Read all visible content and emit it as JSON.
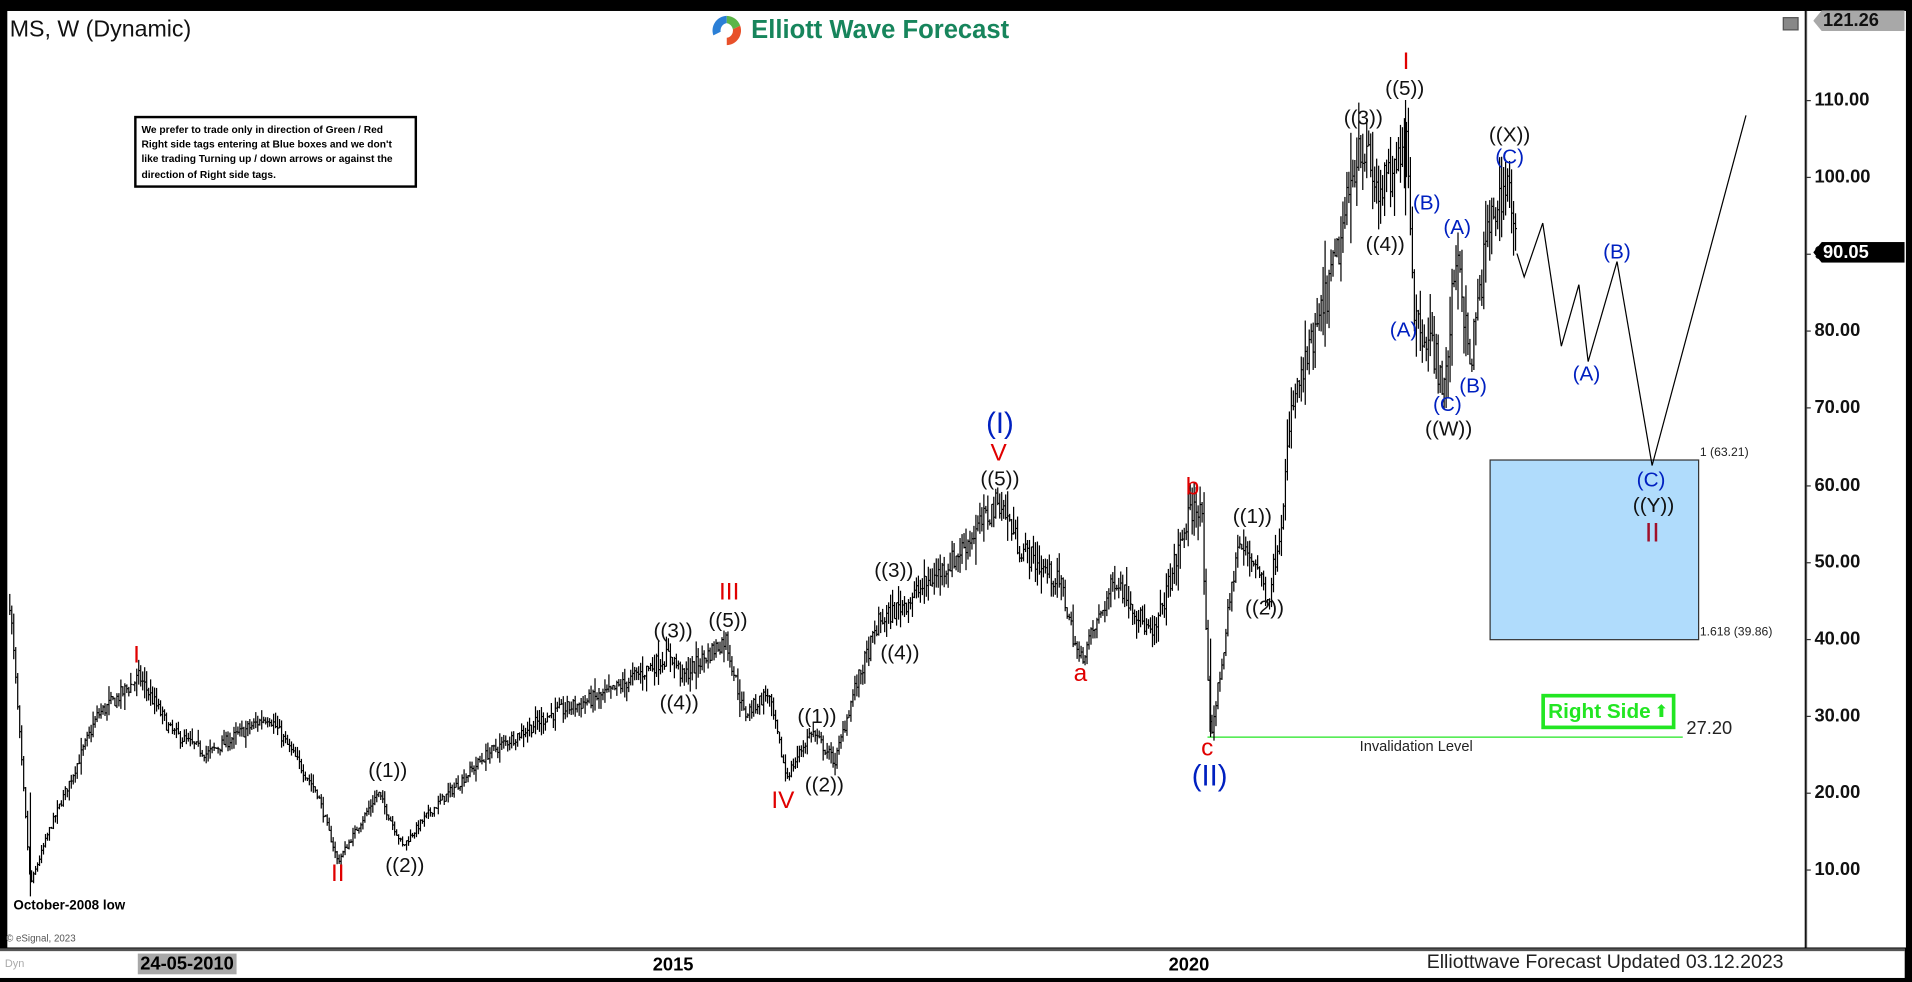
{
  "header": {
    "title": "MS, W (Dynamic)",
    "logo_text": "Elliott Wave Forecast"
  },
  "note": "We prefer to trade only in direction of Green / Red Right side tags entering at Blue boxes and we don't like trading Turning up / down arrows or against the direction of Right side tags.",
  "price_axis": {
    "ticks": [
      "110.00",
      "100.00",
      "90.00",
      "80.00",
      "70.00",
      "60.00",
      "50.00",
      "40.00",
      "30.00",
      "20.00",
      "10.00"
    ],
    "top_tag": "121.26",
    "last_price_tag": "90.05"
  },
  "time_axis": {
    "highlighted": "24-05-2010",
    "ticks": [
      "2015",
      "2020"
    ],
    "dyn": "Dyn"
  },
  "footer": "Elliottwave Forecast Updated 03.12.2023",
  "copyright": "© eSignal, 2023",
  "annotations": {
    "low_note": "October-2008 low",
    "invalidation": "Invalidation Level",
    "invalidation_price": "27.20",
    "fib_1": "1 (63.21)",
    "fib_1618": "1.618 (39.86)",
    "right_side": "Right Side"
  },
  "wave_labels": [
    "I",
    "II",
    "III",
    "IV",
    "V",
    "a",
    "b",
    "c",
    "I",
    "II",
    "(I)",
    "(II)",
    "((1))",
    "((2))",
    "((3))",
    "((4))",
    "((5))",
    "((1))",
    "((2))",
    "((3))",
    "((4))",
    "((5))",
    "((1))",
    "((2))",
    "((3))",
    "((4))",
    "((5))",
    "((W))",
    "((X))",
    "((Y))",
    "(B)",
    "(A)",
    "(A)",
    "(C)",
    "(B)",
    "(C)",
    "(B)",
    "(A)",
    "(C)"
  ],
  "colors": {
    "red": "#e00000",
    "blue": "#0020c0",
    "dark_red": "#a0102a",
    "box": "#b0dcfc",
    "green": "#22e622",
    "logo": "#17855c"
  },
  "chart_data": {
    "type": "ohlc-bar",
    "symbol": "MS",
    "interval": "W",
    "ylim": [
      0,
      121.26
    ],
    "price_path": [
      [
        2008.57,
        45
      ],
      [
        2008.77,
        8
      ],
      [
        2008.95,
        15
      ],
      [
        2009.42,
        30
      ],
      [
        2009.83,
        35
      ],
      [
        2010.13,
        28
      ],
      [
        2010.48,
        25
      ],
      [
        2011.08,
        30
      ],
      [
        2011.55,
        20
      ],
      [
        2011.75,
        11
      ],
      [
        2012.14,
        20
      ],
      [
        2012.38,
        13
      ],
      [
        2012.61,
        17
      ],
      [
        2013.2,
        25
      ],
      [
        2013.79,
        30
      ],
      [
        2014.39,
        33
      ],
      [
        2014.98,
        38
      ],
      [
        2015.09,
        35
      ],
      [
        2015.51,
        40
      ],
      [
        2015.69,
        30
      ],
      [
        2015.92,
        33
      ],
      [
        2016.1,
        22
      ],
      [
        2016.34,
        28
      ],
      [
        2016.57,
        24
      ],
      [
        2016.75,
        33
      ],
      [
        2016.99,
        42
      ],
      [
        2017.28,
        45
      ],
      [
        2017.7,
        50
      ],
      [
        2018.17,
        58
      ],
      [
        2018.35,
        52
      ],
      [
        2018.76,
        47
      ],
      [
        2018.94,
        37
      ],
      [
        2019.11,
        42
      ],
      [
        2019.29,
        48
      ],
      [
        2019.65,
        40
      ],
      [
        2020.0,
        56
      ],
      [
        2020.12,
        58
      ],
      [
        2020.18,
        35
      ],
      [
        2020.21,
        27.2
      ],
      [
        2020.3,
        35
      ],
      [
        2020.47,
        52
      ],
      [
        2020.65,
        50
      ],
      [
        2020.77,
        45
      ],
      [
        2020.89,
        55
      ],
      [
        2021.0,
        70
      ],
      [
        2021.24,
        80
      ],
      [
        2021.48,
        92
      ],
      [
        2021.65,
        105
      ],
      [
        2021.83,
        98
      ],
      [
        2022.01,
        100
      ],
      [
        2022.1,
        109
      ],
      [
        2022.19,
        82
      ],
      [
        2022.36,
        78
      ],
      [
        2022.48,
        72
      ],
      [
        2022.6,
        92
      ],
      [
        2022.72,
        75
      ],
      [
        2022.9,
        93
      ],
      [
        2023.1,
        100
      ],
      [
        2023.18,
        90.05
      ]
    ],
    "projection": [
      [
        2023.18,
        90.05
      ],
      [
        2023.25,
        87
      ],
      [
        2023.43,
        94
      ],
      [
        2023.61,
        78
      ],
      [
        2023.78,
        86
      ],
      [
        2023.87,
        76
      ],
      [
        2024.15,
        89
      ],
      [
        2024.49,
        62.5
      ],
      [
        2025.4,
        108
      ]
    ],
    "blue_box": [
      39.86,
      63.21
    ],
    "invalidation_level": 27.2
  }
}
